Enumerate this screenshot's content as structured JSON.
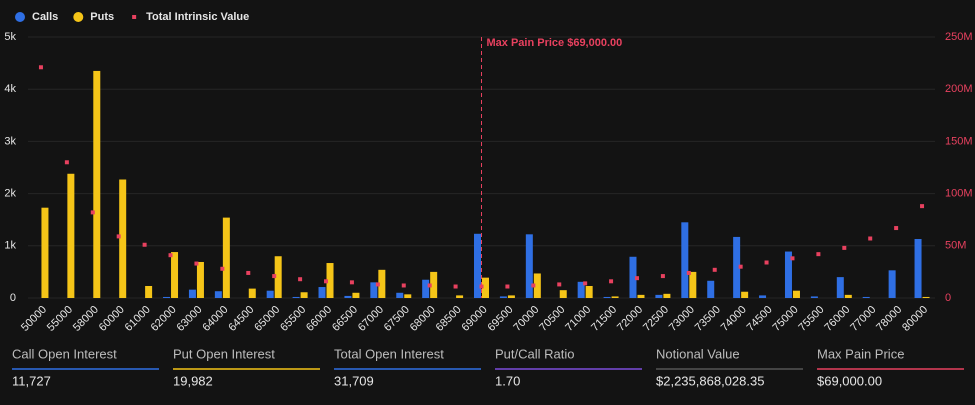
{
  "chart_data": {
    "type": "bar",
    "categories": [
      "50000",
      "55000",
      "58000",
      "60000",
      "61000",
      "62000",
      "63000",
      "64000",
      "64500",
      "65000",
      "65500",
      "66000",
      "66500",
      "67000",
      "67500",
      "68000",
      "68500",
      "69000",
      "69500",
      "70000",
      "70500",
      "71000",
      "71500",
      "72000",
      "72500",
      "73000",
      "73500",
      "74000",
      "74500",
      "75000",
      "75500",
      "76000",
      "77000",
      "78000",
      "80000"
    ],
    "series": [
      {
        "name": "Calls",
        "color": "#2f6fe4",
        "values": [
          0,
          0,
          0,
          0,
          0,
          20,
          160,
          130,
          0,
          140,
          20,
          210,
          40,
          300,
          100,
          350,
          0,
          1230,
          30,
          1220,
          0,
          310,
          20,
          790,
          60,
          1450,
          330,
          1170,
          50,
          890,
          30,
          400,
          20,
          530,
          1130
        ]
      },
      {
        "name": "Puts",
        "color": "#f5c518",
        "values": [
          1730,
          2380,
          4350,
          2270,
          230,
          880,
          690,
          1540,
          180,
          800,
          110,
          670,
          100,
          540,
          70,
          500,
          50,
          390,
          50,
          470,
          150,
          230,
          30,
          60,
          80,
          500,
          0,
          120,
          0,
          140,
          0,
          60,
          0,
          0,
          20
        ]
      },
      {
        "name": "Total Intrinsic Value",
        "color": "#e8415f",
        "axis": "y2",
        "values": [
          221,
          130,
          82,
          59,
          51,
          41,
          33,
          28,
          24,
          21,
          18,
          16,
          15,
          13,
          12,
          12,
          11,
          11,
          11,
          12,
          13,
          14,
          16,
          19,
          21,
          24,
          27,
          30,
          34,
          38,
          42,
          48,
          57,
          67,
          88
        ]
      }
    ],
    "ylim": [
      0,
      5000
    ],
    "yticks": [
      0,
      {
        "value": 1000,
        "label": "1k"
      },
      {
        "value": 2000,
        "label": "2k"
      },
      {
        "value": 3000,
        "label": "3k"
      },
      {
        "value": 4000,
        "label": "4k"
      },
      {
        "value": 5000,
        "label": "5k"
      }
    ],
    "y2lim": [
      0,
      250
    ],
    "y2ticks": [
      0,
      {
        "value": 50,
        "label": "50M"
      },
      {
        "value": 100,
        "label": "100M"
      },
      {
        "value": 150,
        "label": "150M"
      },
      {
        "value": 200,
        "label": "200M"
      },
      {
        "value": 250,
        "label": "250M"
      }
    ],
    "grid": true,
    "annotation": {
      "text": "Max Pain Price $69,000.00",
      "x": "69000",
      "color": "#e8415f"
    }
  },
  "stats": [
    {
      "label": "Call Open Interest",
      "value": "11,727",
      "color": "#2f6fe4"
    },
    {
      "label": "Put Open Interest",
      "value": "19,982",
      "color": "#f5c518"
    },
    {
      "label": "Total Open Interest",
      "value": "31,709",
      "color": "#2f6fe4"
    },
    {
      "label": "Put/Call Ratio",
      "value": "1.70",
      "color": "#7c4ddb"
    },
    {
      "label": "Notional Value",
      "value": "$2,235,868,028.35",
      "color": "#555555"
    },
    {
      "label": "Max Pain Price",
      "value": "$69,000.00",
      "color": "#e8415f"
    }
  ]
}
